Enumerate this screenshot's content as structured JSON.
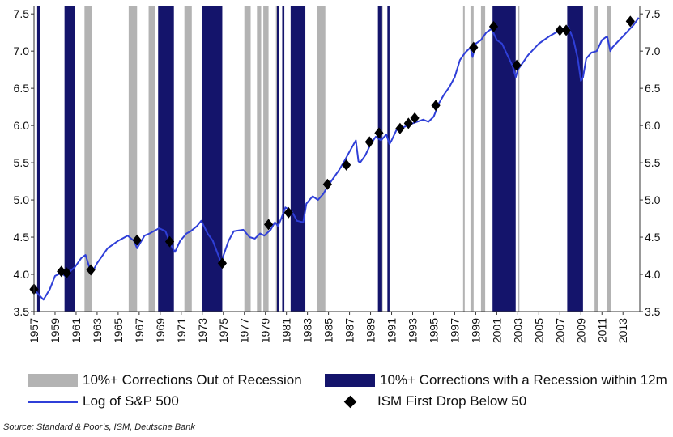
{
  "colors": {
    "out_of_recession": "#b3b3b3",
    "with_recession": "#14146b",
    "sp500_line": "#2f3fd8",
    "ism_marker": "#000000"
  },
  "legend": {
    "out_of_recession": "10%+ Corrections Out of Recession",
    "with_recession": "10%+ Corrections with a Recession within 12m",
    "sp500": "Log of S&P 500",
    "ism": "ISM First Drop Below 50"
  },
  "source": "Source: Standard & Poor’s, ISM, Deutsche Bank",
  "chart_data": {
    "type": "line",
    "x_range": [
      1957,
      2014.6
    ],
    "ylim": [
      3.5,
      7.6
    ],
    "y_ticks": [
      "3.5",
      "4.0",
      "4.5",
      "5.0",
      "5.5",
      "6.0",
      "6.5",
      "7.0",
      "7.5"
    ],
    "x_ticks": [
      "1957",
      "1959",
      "1961",
      "1963",
      "1965",
      "1967",
      "1969",
      "1971",
      "1973",
      "1975",
      "1977",
      "1979",
      "1981",
      "1983",
      "1985",
      "1987",
      "1989",
      "1991",
      "1993",
      "1995",
      "1997",
      "1999",
      "2001",
      "2003",
      "2005",
      "2007",
      "2009",
      "2011",
      "2013"
    ],
    "series": [
      {
        "name": "Log of S&P 500",
        "x": [
          1957.0,
          1957.5,
          1957.9,
          1958.5,
          1959.0,
          1959.6,
          1960.0,
          1960.5,
          1960.9,
          1961.5,
          1961.9,
          1962.3,
          1962.5,
          1963.0,
          1964.0,
          1965.0,
          1965.9,
          1966.5,
          1966.8,
          1967.5,
          1968.0,
          1968.9,
          1969.5,
          1970.0,
          1970.4,
          1970.9,
          1971.5,
          1971.9,
          1972.5,
          1972.9,
          1973.5,
          1974.0,
          1974.4,
          1974.8,
          1975.0,
          1975.5,
          1976.0,
          1976.9,
          1977.5,
          1978.0,
          1978.5,
          1978.9,
          1979.5,
          1979.9,
          1980.2,
          1980.5,
          1980.9,
          1981.5,
          1982.0,
          1982.6,
          1982.9,
          1983.5,
          1984.0,
          1984.5,
          1985.0,
          1985.5,
          1986.0,
          1986.5,
          1987.0,
          1987.6,
          1987.85,
          1988.0,
          1988.5,
          1989.0,
          1989.5,
          1990.0,
          1990.5,
          1990.8,
          1991.0,
          1991.5,
          1992.0,
          1993.0,
          1994.0,
          1994.5,
          1995.0,
          1995.5,
          1996.0,
          1996.5,
          1997.0,
          1997.5,
          1998.0,
          1998.5,
          1998.7,
          1999.0,
          1999.5,
          2000.0,
          2000.5,
          2001.0,
          2001.5,
          2002.0,
          2002.5,
          2002.8,
          2003.0,
          2003.5,
          2004.0,
          2005.0,
          2006.0,
          2007.0,
          2007.8,
          2008.3,
          2008.7,
          2009.0,
          2009.2,
          2009.5,
          2010.0,
          2010.5,
          2011.0,
          2011.5,
          2011.8,
          2012.0,
          2013.0,
          2014.0,
          2014.5
        ],
        "y": [
          3.8,
          3.72,
          3.66,
          3.8,
          3.98,
          4.02,
          3.97,
          4.05,
          4.1,
          4.22,
          4.26,
          4.08,
          4.02,
          4.15,
          4.35,
          4.45,
          4.52,
          4.45,
          4.35,
          4.52,
          4.55,
          4.62,
          4.58,
          4.4,
          4.3,
          4.45,
          4.55,
          4.58,
          4.65,
          4.72,
          4.55,
          4.45,
          4.3,
          4.15,
          4.25,
          4.45,
          4.58,
          4.6,
          4.5,
          4.48,
          4.55,
          4.52,
          4.6,
          4.7,
          4.65,
          4.75,
          4.9,
          4.85,
          4.72,
          4.7,
          4.95,
          5.05,
          5.0,
          5.08,
          5.2,
          5.3,
          5.4,
          5.52,
          5.65,
          5.8,
          5.52,
          5.5,
          5.6,
          5.75,
          5.85,
          5.8,
          5.88,
          5.75,
          5.8,
          5.95,
          5.97,
          6.03,
          6.08,
          6.05,
          6.12,
          6.3,
          6.42,
          6.52,
          6.65,
          6.88,
          6.98,
          7.05,
          6.92,
          7.1,
          7.15,
          7.25,
          7.3,
          7.15,
          7.1,
          6.95,
          6.8,
          6.65,
          6.75,
          6.85,
          6.95,
          7.1,
          7.2,
          7.28,
          7.33,
          7.15,
          6.9,
          6.6,
          6.65,
          6.9,
          6.98,
          7.0,
          7.15,
          7.2,
          7.0,
          7.05,
          7.2,
          7.35,
          7.45
        ]
      }
    ],
    "corrections_out_of_recession": [
      [
        1961.8,
        1962.5
      ],
      [
        1966.0,
        1966.8
      ],
      [
        1967.9,
        1968.5
      ],
      [
        1971.3,
        1972.0
      ],
      [
        1977.0,
        1977.6
      ],
      [
        1978.2,
        1978.6
      ],
      [
        1978.8,
        1979.3
      ],
      [
        1980.0,
        1980.2
      ],
      [
        1983.9,
        1984.7
      ],
      [
        1990.0,
        1990.15
      ],
      [
        1997.8,
        1997.95
      ],
      [
        1998.5,
        1998.8
      ],
      [
        1999.5,
        1999.9
      ],
      [
        2001.8,
        2002.0
      ],
      [
        2003.0,
        2003.15
      ],
      [
        2010.3,
        2010.6
      ],
      [
        2011.5,
        2011.9
      ]
    ],
    "corrections_with_recession": [
      [
        1957.3,
        1957.6
      ],
      [
        1959.9,
        1960.9
      ],
      [
        1968.8,
        1970.3
      ],
      [
        1973.0,
        1974.9
      ],
      [
        1980.1,
        1980.3
      ],
      [
        1980.6,
        1980.8
      ],
      [
        1981.4,
        1982.8
      ],
      [
        1989.7,
        1990.1
      ],
      [
        1990.6,
        1990.8
      ],
      [
        2000.6,
        2002.8
      ],
      [
        2007.7,
        2009.2
      ]
    ],
    "ism_first_drop": [
      [
        1957.0,
        3.8
      ],
      [
        1959.6,
        4.04
      ],
      [
        1960.1,
        4.02
      ],
      [
        1962.4,
        4.06
      ],
      [
        1966.8,
        4.46
      ],
      [
        1969.9,
        4.44
      ],
      [
        1974.9,
        4.15
      ],
      [
        1979.3,
        4.67
      ],
      [
        1981.2,
        4.83
      ],
      [
        1984.9,
        5.21
      ],
      [
        1986.7,
        5.47
      ],
      [
        1988.9,
        5.78
      ],
      [
        1989.8,
        5.9
      ],
      [
        1991.8,
        5.96
      ],
      [
        1992.6,
        6.03
      ],
      [
        1993.2,
        6.1
      ],
      [
        1995.2,
        6.27
      ],
      [
        1998.8,
        7.05
      ],
      [
        2000.7,
        7.33
      ],
      [
        2002.9,
        6.81
      ],
      [
        2007.0,
        7.28
      ],
      [
        2007.6,
        7.28
      ],
      [
        2013.7,
        7.4
      ]
    ]
  }
}
